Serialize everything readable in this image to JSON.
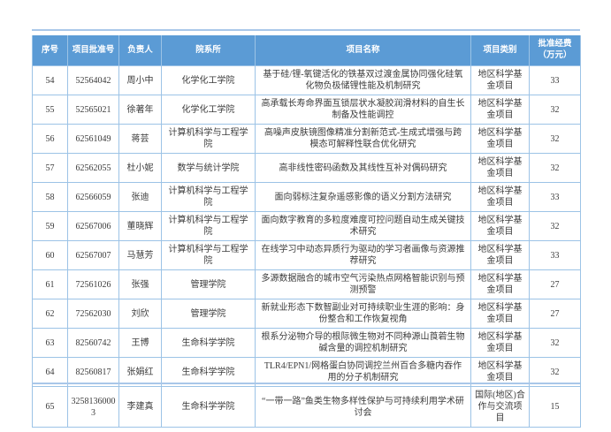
{
  "colors": {
    "header_bg": "#5b9bd5",
    "header_text": "#ffffff",
    "grid_border": "#9cc3e6",
    "body_text": "#3b3b3b",
    "accent_line": "#a9c7e9",
    "page_bg": "#ffffff"
  },
  "table": {
    "columns": [
      "序号",
      "项目批准号",
      "负责人",
      "院系所",
      "项目名称",
      "项目类别",
      "批准经费（万元）"
    ],
    "rows": [
      {
        "no": "54",
        "grant_no": "52564042",
        "pi": "周小中",
        "dept": "化学化工学院",
        "title": "基于硅/锂-氧键活化的铁基双过渡金属协同强化硅氧化物负极储锂性能及机制研究",
        "category": "地区科学基金项目",
        "amount": "33"
      },
      {
        "no": "55",
        "grant_no": "52565021",
        "pi": "徐著年",
        "dept": "化学化工学院",
        "title": "高承载长寿命界面互锁层状水凝胶润滑材料的自生长制备及性能调控",
        "category": "地区科学基金项目",
        "amount": "32"
      },
      {
        "no": "56",
        "grant_no": "62561049",
        "pi": "蒋芸",
        "dept": "计算机科学与工程学院",
        "title": "高噪声皮肤镜图像精准分割新范式-生成式增强与跨模态可解释性联合优化研究",
        "category": "地区科学基金项目",
        "amount": "32"
      },
      {
        "no": "57",
        "grant_no": "62562055",
        "pi": "杜小妮",
        "dept": "数学与统计学院",
        "title": "高非线性密码函数及其线性互补对偶码研究",
        "category": "地区科学基金项目",
        "amount": "32"
      },
      {
        "no": "58",
        "grant_no": "62566059",
        "pi": "张迪",
        "dept": "计算机科学与工程学院",
        "title": "面向弱标注复杂遥感影像的语义分割方法研究",
        "category": "地区科学基金项目",
        "amount": "33"
      },
      {
        "no": "59",
        "grant_no": "62567006",
        "pi": "董晓辉",
        "dept": "计算机科学与工程学院",
        "title": "面向数字教育的多粒度难度可控问题自动生成关键技术研究",
        "category": "地区科学基金项目",
        "amount": "32"
      },
      {
        "no": "60",
        "grant_no": "62567007",
        "pi": "马慧芳",
        "dept": "计算机科学与工程学院",
        "title": "在线学习中动态异质行为驱动的学习者画像与资源推荐研究",
        "category": "地区科学基金项目",
        "amount": "33"
      },
      {
        "no": "61",
        "grant_no": "72561026",
        "pi": "张强",
        "dept": "管理学院",
        "title": "多源数据融合的城市空气污染热点网格智能识别与预测预警",
        "category": "地区科学基金项目",
        "amount": "27"
      },
      {
        "no": "62",
        "grant_no": "72562030",
        "pi": "刘欣",
        "dept": "管理学院",
        "title": "新就业形态下数智副业对可持续职业生涯的影响：身份整合和工作恢复视角",
        "category": "地区科学基金项目",
        "amount": "27"
      },
      {
        "no": "63",
        "grant_no": "82560742",
        "pi": "王博",
        "dept": "生命科学学院",
        "title": "根系分泌物介导的根际微生物对不同种源山莨菪生物碱含量的调控机制研究",
        "category": "地区科学基金项目",
        "amount": "32"
      },
      {
        "no": "64",
        "grant_no": "82560817",
        "pi": "张娟红",
        "dept": "生命科学学院",
        "title": "TLR4/EPN1/网格蛋白协同调控兰州百合多糖内吞作用的分子机制研究",
        "category": "地区科学基金项目",
        "amount": "32"
      },
      {
        "no": "65",
        "grant_no": "32581360003",
        "pi": "李建真",
        "dept": "生命科学学院",
        "title": "“一带一路”鱼类生物多样性保护与可持续利用学术研讨会",
        "category": "国际(地区)合作与交流项目",
        "amount": "15"
      }
    ]
  }
}
